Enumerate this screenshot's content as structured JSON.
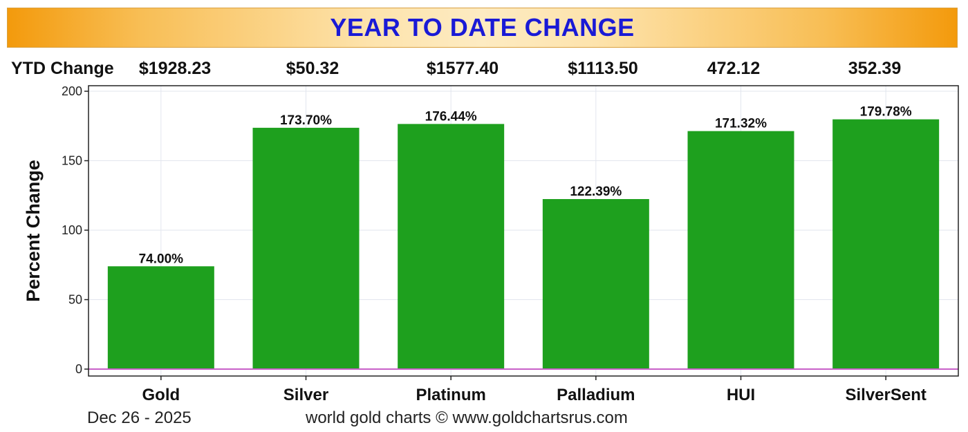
{
  "header": {
    "title": "YEAR TO DATE CHANGE"
  },
  "ytd_row": {
    "label": "YTD Change",
    "values": [
      "$1928.23",
      "$50.32",
      "$1577.40",
      "$1113.50",
      "472.12",
      "352.39"
    ]
  },
  "footer": {
    "date": "Dec 26 - 2025",
    "credit": "world gold charts © www.goldchartsrus.com"
  },
  "colors": {
    "bar": "#1ea01e",
    "title": "#1a1ad6",
    "zero_line": "#c860c8",
    "grid": "#e2e6ee"
  },
  "chart_data": {
    "type": "bar",
    "categories": [
      "Gold",
      "Silver",
      "Platinum",
      "Palladium",
      "HUI",
      "SilverSent"
    ],
    "values": [
      74.0,
      173.7,
      176.44,
      122.39,
      171.32,
      179.78
    ],
    "data_labels": [
      "74.00%",
      "173.70%",
      "176.44%",
      "122.39%",
      "171.32%",
      "179.78%"
    ],
    "ylabel": "Percent Change",
    "ylim": [
      0,
      200
    ],
    "yticks": [
      0,
      50,
      100,
      150,
      200
    ],
    "grid": true
  }
}
